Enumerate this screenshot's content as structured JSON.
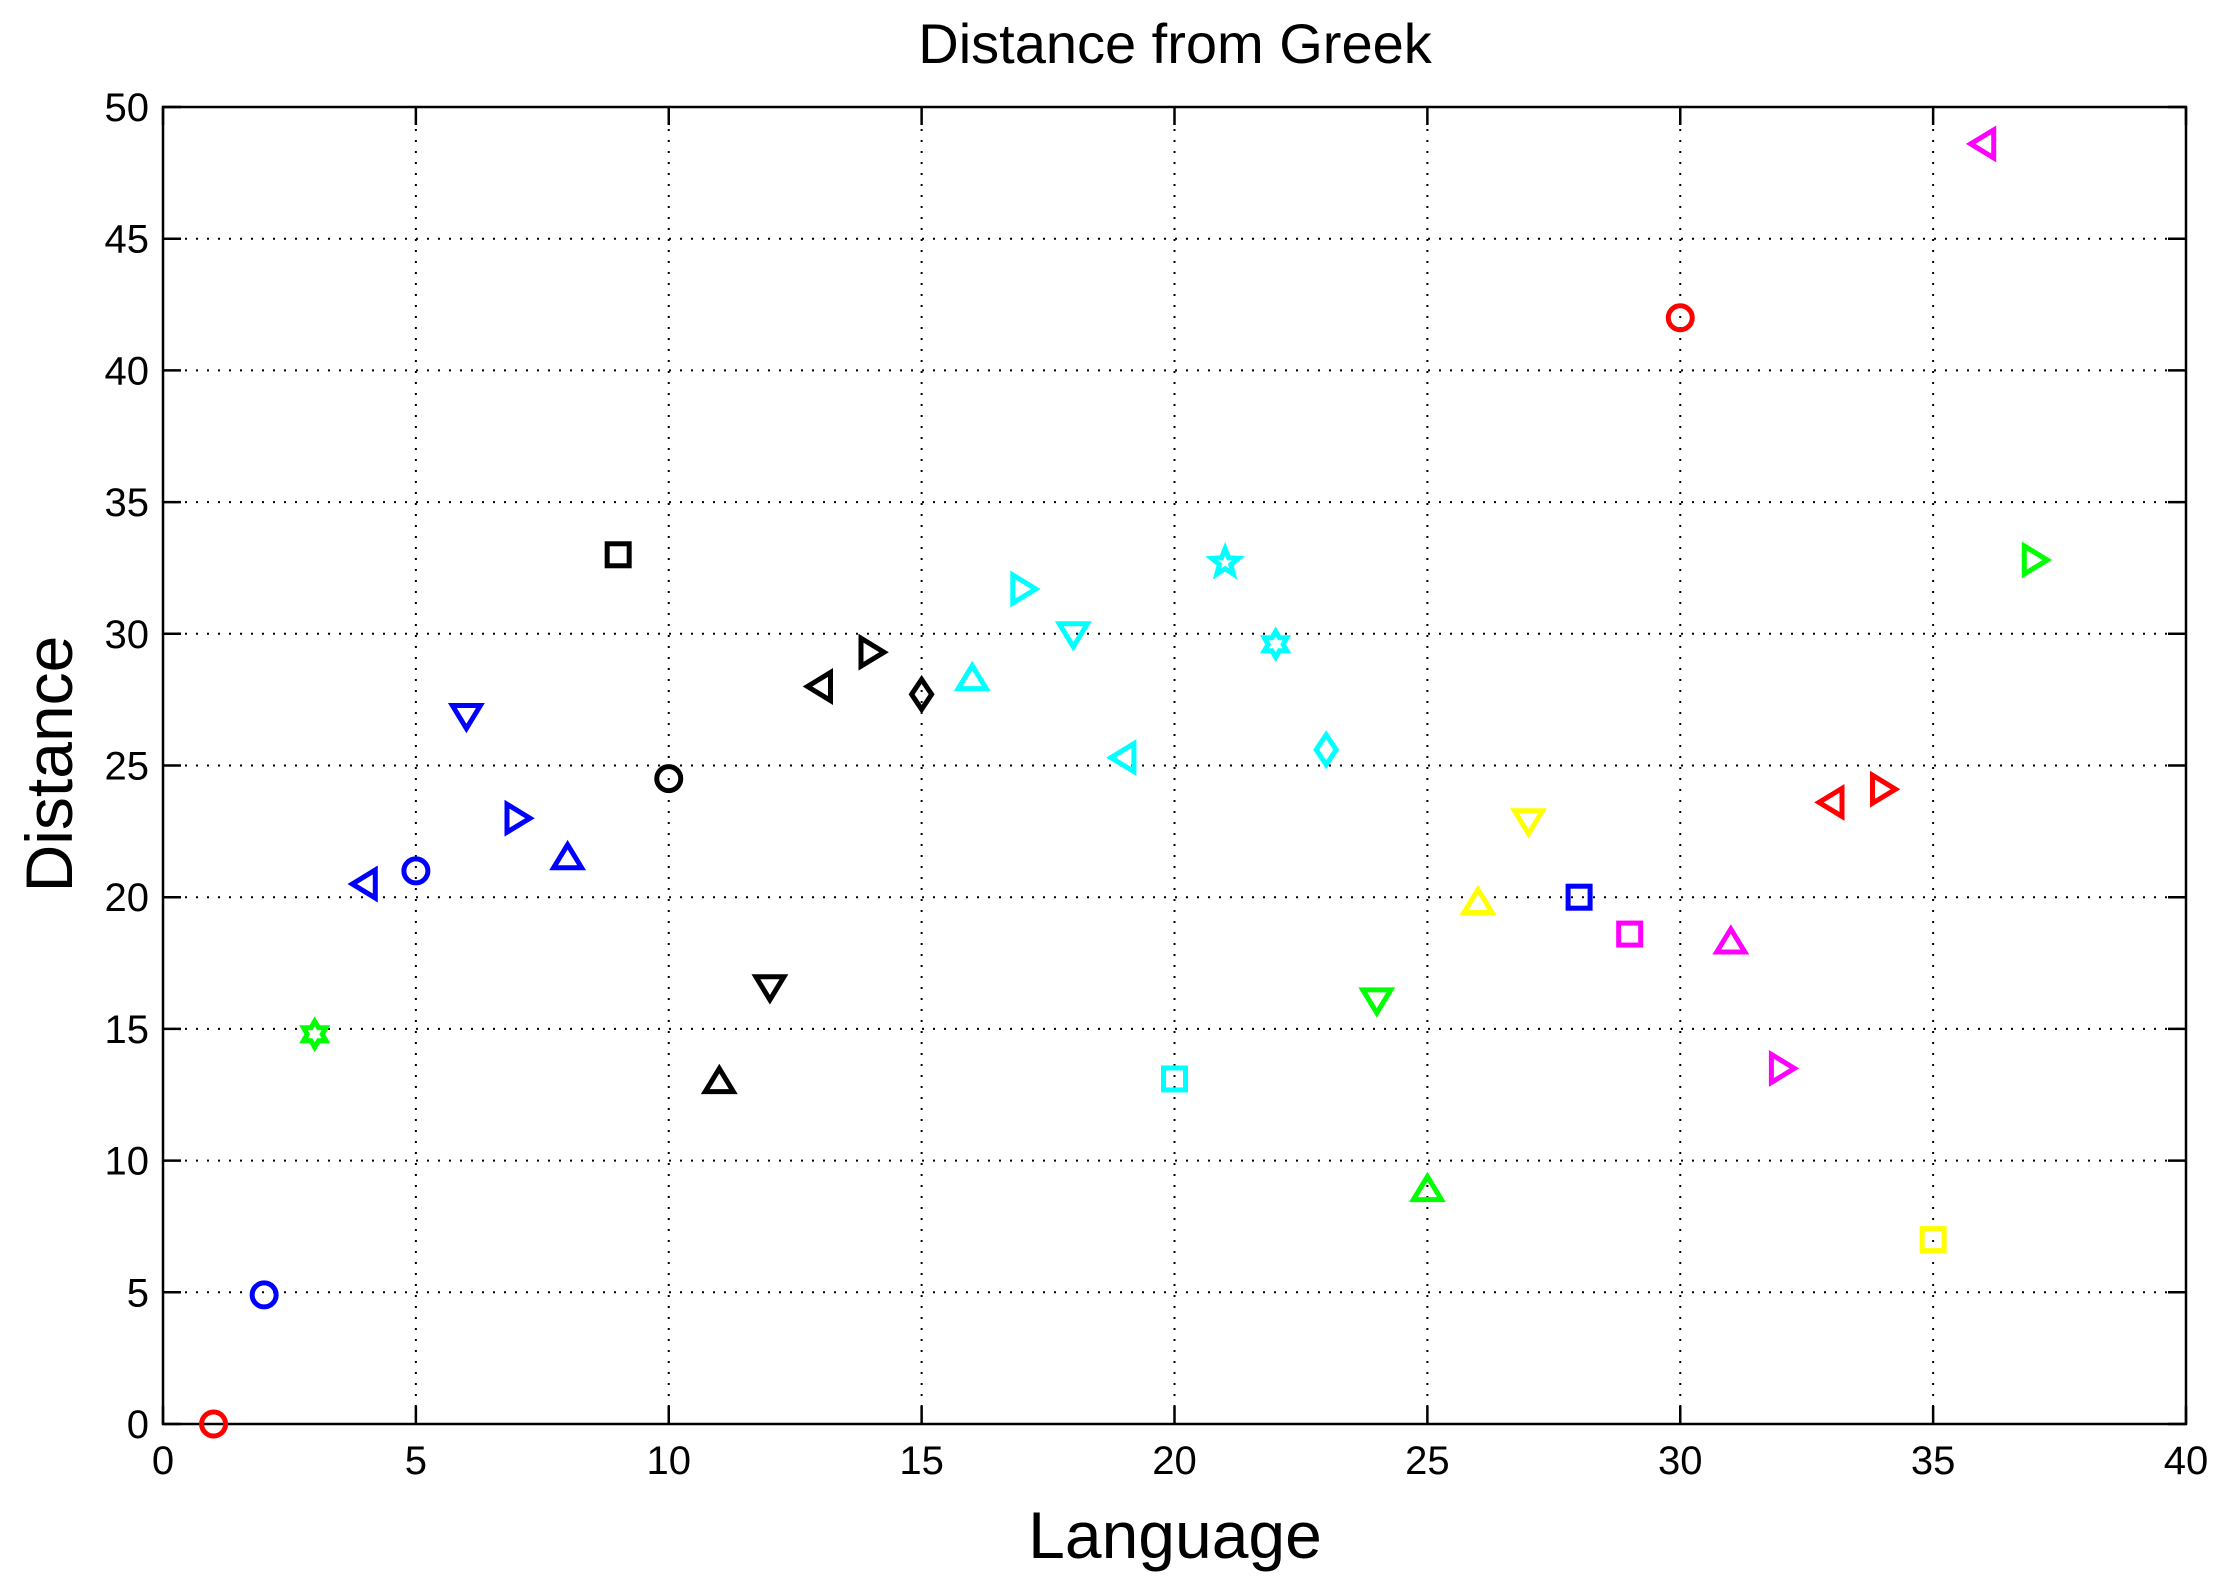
{
  "chart_data": {
    "type": "scatter",
    "title": "Distance from Greek",
    "xlabel": "Language",
    "ylabel": "Distance",
    "xlim": [
      0,
      40
    ],
    "ylim": [
      0,
      50
    ],
    "xticks": [
      0,
      5,
      10,
      15,
      20,
      25,
      30,
      35,
      40
    ],
    "yticks": [
      0,
      5,
      10,
      15,
      20,
      25,
      30,
      35,
      40,
      45,
      50
    ],
    "grid": true,
    "points": [
      {
        "x": 1,
        "y": 0,
        "color": "#ff0000",
        "marker": "octagon-filled"
      },
      {
        "x": 2,
        "y": 4.9,
        "color": "#0000ff",
        "marker": "octagon-filled"
      },
      {
        "x": 3,
        "y": 14.8,
        "color": "#00ff00",
        "marker": "hexagram"
      },
      {
        "x": 4,
        "y": 20.5,
        "color": "#0000ff",
        "marker": "triangle-left"
      },
      {
        "x": 5,
        "y": 21.0,
        "color": "#0000ff",
        "marker": "circle"
      },
      {
        "x": 6,
        "y": 26.9,
        "color": "#0000ff",
        "marker": "triangle-down"
      },
      {
        "x": 7,
        "y": 23.0,
        "color": "#0000ff",
        "marker": "triangle-right"
      },
      {
        "x": 8,
        "y": 21.5,
        "color": "#0000ff",
        "marker": "triangle-up"
      },
      {
        "x": 9,
        "y": 33.0,
        "color": "#000000",
        "marker": "square"
      },
      {
        "x": 10,
        "y": 24.5,
        "color": "#000000",
        "marker": "circle"
      },
      {
        "x": 11,
        "y": 13.0,
        "color": "#000000",
        "marker": "triangle-up"
      },
      {
        "x": 12,
        "y": 16.6,
        "color": "#000000",
        "marker": "triangle-down"
      },
      {
        "x": 13,
        "y": 28.0,
        "color": "#000000",
        "marker": "triangle-left"
      },
      {
        "x": 14,
        "y": 29.3,
        "color": "#000000",
        "marker": "triangle-right"
      },
      {
        "x": 15,
        "y": 27.7,
        "color": "#000000",
        "marker": "diamond"
      },
      {
        "x": 16,
        "y": 28.3,
        "color": "#00ffff",
        "marker": "triangle-up"
      },
      {
        "x": 17,
        "y": 31.7,
        "color": "#00ffff",
        "marker": "triangle-right"
      },
      {
        "x": 18,
        "y": 30.0,
        "color": "#00ffff",
        "marker": "triangle-down"
      },
      {
        "x": 19,
        "y": 25.3,
        "color": "#00ffff",
        "marker": "triangle-left"
      },
      {
        "x": 20,
        "y": 13.1,
        "color": "#00ffff",
        "marker": "square"
      },
      {
        "x": 21,
        "y": 32.7,
        "color": "#00ffff",
        "marker": "pentagram"
      },
      {
        "x": 22,
        "y": 29.6,
        "color": "#00ffff",
        "marker": "hexagram"
      },
      {
        "x": 23,
        "y": 25.6,
        "color": "#00ffff",
        "marker": "diamond"
      },
      {
        "x": 24,
        "y": 16.1,
        "color": "#00ff00",
        "marker": "triangle-down"
      },
      {
        "x": 25,
        "y": 8.9,
        "color": "#00ff00",
        "marker": "triangle-up"
      },
      {
        "x": 26,
        "y": 19.8,
        "color": "#ffff00",
        "marker": "triangle-up"
      },
      {
        "x": 27,
        "y": 22.9,
        "color": "#ffff00",
        "marker": "triangle-down"
      },
      {
        "x": 28,
        "y": 20.0,
        "color": "#0000ff",
        "marker": "square"
      },
      {
        "x": 29,
        "y": 18.6,
        "color": "#ff00ff",
        "marker": "square"
      },
      {
        "x": 30,
        "y": 42.0,
        "color": "#ff0000",
        "marker": "octagon-filled"
      },
      {
        "x": 31,
        "y": 18.3,
        "color": "#ff00ff",
        "marker": "triangle-up"
      },
      {
        "x": 32,
        "y": 13.5,
        "color": "#ff00ff",
        "marker": "triangle-right"
      },
      {
        "x": 33,
        "y": 23.6,
        "color": "#ff0000",
        "marker": "triangle-left"
      },
      {
        "x": 34,
        "y": 24.1,
        "color": "#ff0000",
        "marker": "triangle-right"
      },
      {
        "x": 35,
        "y": 7.0,
        "color": "#ffff00",
        "marker": "square"
      },
      {
        "x": 36,
        "y": 48.6,
        "color": "#ff00ff",
        "marker": "triangle-left"
      },
      {
        "x": 37,
        "y": 32.8,
        "color": "#00ff00",
        "marker": "triangle-right"
      }
    ]
  }
}
